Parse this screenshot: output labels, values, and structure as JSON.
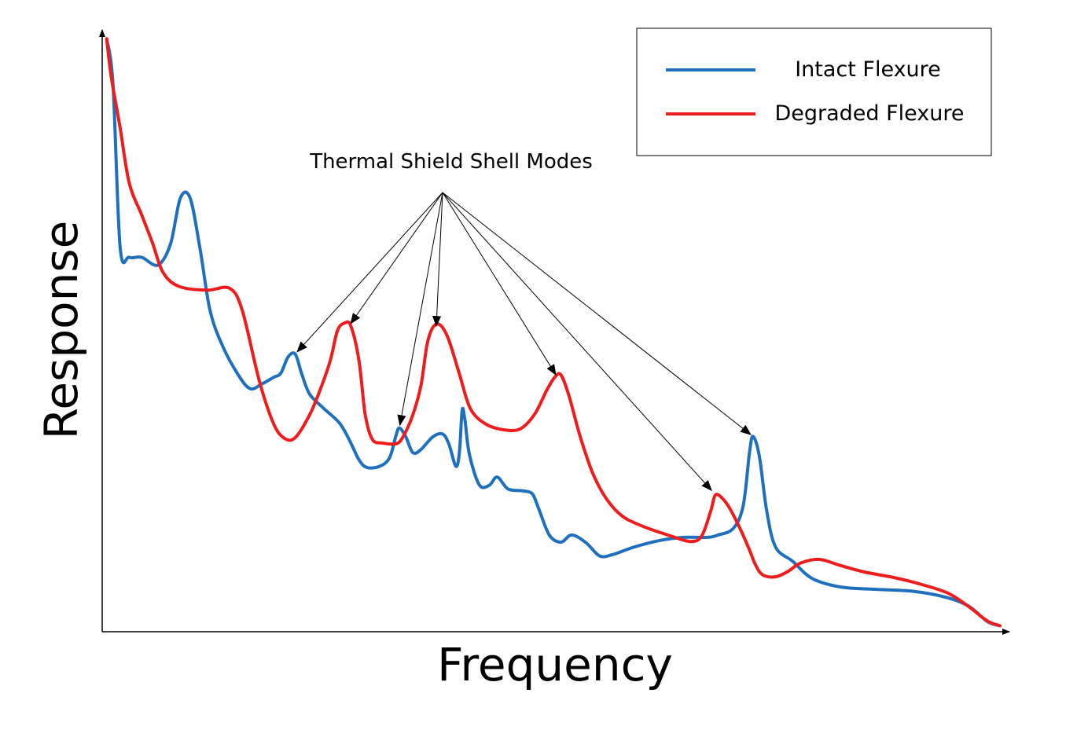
{
  "chart_data": {
    "type": "line",
    "xlabel": "Frequency",
    "ylabel": "Response",
    "xlim": [
      0,
      100
    ],
    "ylim": [
      0,
      100
    ],
    "ticks": "none",
    "grid": false,
    "legend_position": "top-right",
    "annotation": {
      "text": "Thermal Shield Shell Modes",
      "targets": [
        {
          "series": "Intact Flexure",
          "x": 21.5,
          "y": 46.5
        },
        {
          "series": "Degraded Flexure",
          "x": 27.5,
          "y": 51.2
        },
        {
          "series": "Intact Flexure",
          "x": 33.1,
          "y": 34.1
        },
        {
          "series": "Degraded Flexure",
          "x": 37.2,
          "y": 50.7
        },
        {
          "series": "Degraded Flexure",
          "x": 50.7,
          "y": 42.6
        },
        {
          "series": "Degraded Flexure",
          "x": 68.1,
          "y": 23.3
        },
        {
          "series": "Intact Flexure",
          "x": 72.5,
          "y": 32.7
        }
      ]
    },
    "series": [
      {
        "name": "Intact Flexure",
        "color": "#1f6fbf",
        "points": [
          [
            0.5,
            99.3
          ],
          [
            1.2,
            91.7
          ],
          [
            2.0,
            64.4
          ],
          [
            3.0,
            62.7
          ],
          [
            4.4,
            62.7
          ],
          [
            6.2,
            61.4
          ],
          [
            7.6,
            64.9
          ],
          [
            8.7,
            72.6
          ],
          [
            9.8,
            72.6
          ],
          [
            10.9,
            64.1
          ],
          [
            12.0,
            53.9
          ],
          [
            13.4,
            47.9
          ],
          [
            15.2,
            42.9
          ],
          [
            16.5,
            40.7
          ],
          [
            17.8,
            41.5
          ],
          [
            19.1,
            42.6
          ],
          [
            19.9,
            43.3
          ],
          [
            20.7,
            46.0
          ],
          [
            21.5,
            46.5
          ],
          [
            22.2,
            43.3
          ],
          [
            23.1,
            39.8
          ],
          [
            24.6,
            37.5
          ],
          [
            26.4,
            35.0
          ],
          [
            27.5,
            32.2
          ],
          [
            28.6,
            28.8
          ],
          [
            29.5,
            27.5
          ],
          [
            30.9,
            27.7
          ],
          [
            32.0,
            29.1
          ],
          [
            32.7,
            32.7
          ],
          [
            33.1,
            34.1
          ],
          [
            33.8,
            32.7
          ],
          [
            34.6,
            30.0
          ],
          [
            35.5,
            30.5
          ],
          [
            36.8,
            32.6
          ],
          [
            37.9,
            33.1
          ],
          [
            38.6,
            31.5
          ],
          [
            39.4,
            27.7
          ],
          [
            39.8,
            30.2
          ],
          [
            40.1,
            37.1
          ],
          [
            40.4,
            35.5
          ],
          [
            40.9,
            29.7
          ],
          [
            42.0,
            24.6
          ],
          [
            43.1,
            24.5
          ],
          [
            44.0,
            25.9
          ],
          [
            45.2,
            23.9
          ],
          [
            46.8,
            23.6
          ],
          [
            47.9,
            23.1
          ],
          [
            48.6,
            20.7
          ],
          [
            49.8,
            16.2
          ],
          [
            51.1,
            15.0
          ],
          [
            52.3,
            16.2
          ],
          [
            53.9,
            14.9
          ],
          [
            55.4,
            12.7
          ],
          [
            56.8,
            12.9
          ],
          [
            59.3,
            14.2
          ],
          [
            62.2,
            15.3
          ],
          [
            64.8,
            15.8
          ],
          [
            67.4,
            15.8
          ],
          [
            68.6,
            16.2
          ],
          [
            70.3,
            17.3
          ],
          [
            71.4,
            21.1
          ],
          [
            72.1,
            30.0
          ],
          [
            72.5,
            32.7
          ],
          [
            73.2,
            29.4
          ],
          [
            74.0,
            20.4
          ],
          [
            75.0,
            14.2
          ],
          [
            76.9,
            11.8
          ],
          [
            79.1,
            8.9
          ],
          [
            82.2,
            7.5
          ],
          [
            86.0,
            7.1
          ],
          [
            90.1,
            6.8
          ],
          [
            93.9,
            5.8
          ],
          [
            96.5,
            4.3
          ],
          [
            98.6,
            1.7
          ],
          [
            100.0,
            1.0
          ]
        ]
      },
      {
        "name": "Degraded Flexure",
        "color": "#ee1c1c",
        "points": [
          [
            0.5,
            99.3
          ],
          [
            1.0,
            93.0
          ],
          [
            2.0,
            84.4
          ],
          [
            3.0,
            75.2
          ],
          [
            4.4,
            69.8
          ],
          [
            5.6,
            65.1
          ],
          [
            6.8,
            60.1
          ],
          [
            8.6,
            57.8
          ],
          [
            11.7,
            57.2
          ],
          [
            14.2,
            57.5
          ],
          [
            15.6,
            53.8
          ],
          [
            17.5,
            42.0
          ],
          [
            19.1,
            34.8
          ],
          [
            20.3,
            32.4
          ],
          [
            21.5,
            32.5
          ],
          [
            23.1,
            36.3
          ],
          [
            24.3,
            40.6
          ],
          [
            25.4,
            45.4
          ],
          [
            26.2,
            50.4
          ],
          [
            27.0,
            51.7
          ],
          [
            27.7,
            51.2
          ],
          [
            28.6,
            45.4
          ],
          [
            29.3,
            36.3
          ],
          [
            30.1,
            32.2
          ],
          [
            31.2,
            31.6
          ],
          [
            32.8,
            31.5
          ],
          [
            33.6,
            32.9
          ],
          [
            34.6,
            36.3
          ],
          [
            35.5,
            41.2
          ],
          [
            36.2,
            48.2
          ],
          [
            36.9,
            51.1
          ],
          [
            37.7,
            51.3
          ],
          [
            38.6,
            48.9
          ],
          [
            39.8,
            43.1
          ],
          [
            41.0,
            37.4
          ],
          [
            42.7,
            34.8
          ],
          [
            44.8,
            33.8
          ],
          [
            46.6,
            34.0
          ],
          [
            48.2,
            36.5
          ],
          [
            49.5,
            40.4
          ],
          [
            50.4,
            42.6
          ],
          [
            51.1,
            43.0
          ],
          [
            52.0,
            39.5
          ],
          [
            53.2,
            32.9
          ],
          [
            54.6,
            26.7
          ],
          [
            56.1,
            22.4
          ],
          [
            57.9,
            19.4
          ],
          [
            60.3,
            17.6
          ],
          [
            63.4,
            16.0
          ],
          [
            65.6,
            15.1
          ],
          [
            66.8,
            16.1
          ],
          [
            67.8,
            20.3
          ],
          [
            68.3,
            22.9
          ],
          [
            69.1,
            22.3
          ],
          [
            70.0,
            20.4
          ],
          [
            71.1,
            17.1
          ],
          [
            72.1,
            13.7
          ],
          [
            72.8,
            11.1
          ],
          [
            73.6,
            9.5
          ],
          [
            75.0,
            9.2
          ],
          [
            76.4,
            10.1
          ],
          [
            77.8,
            11.5
          ],
          [
            79.9,
            12.1
          ],
          [
            82.2,
            11.1
          ],
          [
            84.9,
            10.0
          ],
          [
            88.1,
            9.1
          ],
          [
            91.3,
            7.9
          ],
          [
            94.3,
            6.4
          ],
          [
            96.6,
            4.1
          ],
          [
            98.6,
            1.8
          ],
          [
            100.0,
            1.0
          ]
        ]
      }
    ]
  }
}
